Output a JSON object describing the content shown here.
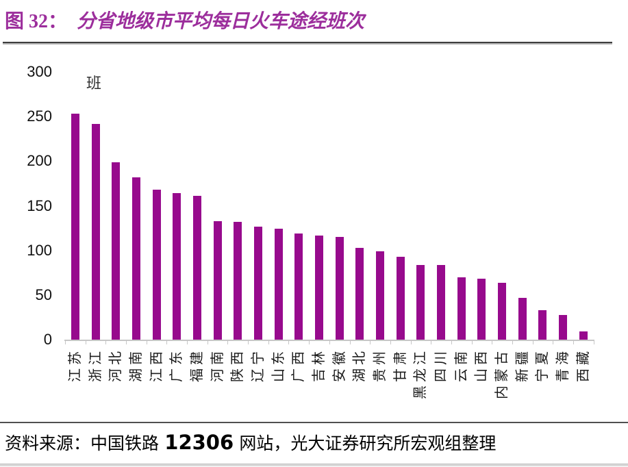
{
  "title": {
    "label": "图 32：",
    "text": "分省地级市平均每日火车途经班次"
  },
  "unit_label": "班",
  "footer": {
    "prefix": "资料来源：中国铁路 ",
    "number": "12306",
    "suffix": " 网站，光大证券研究所宏观组整理"
  },
  "colors": {
    "bar": "#970A8D",
    "title": "#9C2E9C",
    "axis": "#C6C6C6",
    "text": "#1A1A1A"
  },
  "chart_data": {
    "type": "bar",
    "title": "分省地级市平均每日火车途经班次",
    "ylabel": "班",
    "xlabel": "",
    "ylim": [
      0,
      300
    ],
    "yticks": [
      0,
      50,
      100,
      150,
      200,
      250,
      300
    ],
    "grid": false,
    "legend": "none",
    "bar_color": "#970A8D",
    "categories": [
      "江苏",
      "浙江",
      "河北",
      "湖南",
      "江西",
      "广东",
      "福建",
      "河南",
      "陕西",
      "辽宁",
      "山东",
      "广西",
      "吉林",
      "安徽",
      "湖北",
      "贵州",
      "甘肃",
      "黑龙江",
      "四川",
      "云南",
      "山西",
      "内蒙古",
      "新疆",
      "宁夏",
      "青海",
      "西藏"
    ],
    "values": [
      253,
      242,
      199,
      182,
      168,
      164,
      161,
      133,
      132,
      127,
      124,
      119,
      117,
      115,
      103,
      99,
      93,
      84,
      84,
      70,
      68,
      64,
      47,
      33,
      28,
      9
    ]
  }
}
